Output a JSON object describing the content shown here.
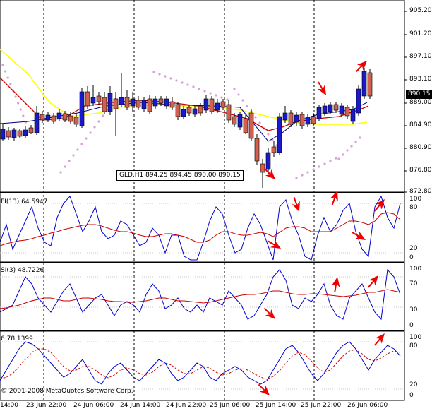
{
  "chart": {
    "symbol_tooltip": "GLD,H1  894.25 894.45 890.00 890.15",
    "current_price": "890.15",
    "copyright": "© 2001-2008 MetaQuotes Software Corp.",
    "colors": {
      "bull_candle": "#1a1acc",
      "bear_candle": "#d06050",
      "sma_slow": "#ffff00",
      "sma_fast": "#cc0000",
      "sar": "#d8a0d8",
      "blue_line": "#0000cc",
      "red_line": "#cc0000",
      "arrow": "#ee0000",
      "grid_dash": "#000000"
    }
  },
  "price_axis": [
    "905.20",
    "901.20",
    "897.10",
    "893.10",
    "889.00",
    "884.90",
    "880.90",
    "876.80",
    "872.80"
  ],
  "time_axis": [
    "14:00",
    "23 Jun 22:00",
    "24 Jun 06:00",
    "24 Jun 14:00",
    "24 Jun 22:00",
    "25 Jun 06:00",
    "25 Jun 14:00",
    "25 Jun 22:00",
    "26 Jun 06:00"
  ],
  "panes": [
    {
      "title": "FI(13) 64.5947",
      "levels": [
        "100",
        "80",
        "20",
        "0"
      ]
    },
    {
      "title": "SI(3) 48.7226",
      "levels": [
        "100",
        "70",
        "30",
        "0"
      ]
    },
    {
      "title": "6 78.1399",
      "levels": [
        "100",
        "80",
        "20",
        "0"
      ]
    }
  ]
}
